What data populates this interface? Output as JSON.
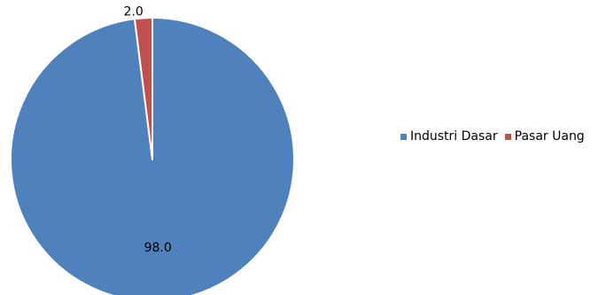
{
  "chart_data": {
    "type": "pie",
    "categories": [
      "Industri Dasar",
      "Pasar Uang"
    ],
    "values": [
      98.0,
      2.0
    ],
    "value_labels": [
      "98.0",
      "2.0"
    ],
    "colors": [
      "#4f81bd",
      "#c0504d"
    ],
    "legend_position": "right",
    "title": ""
  }
}
